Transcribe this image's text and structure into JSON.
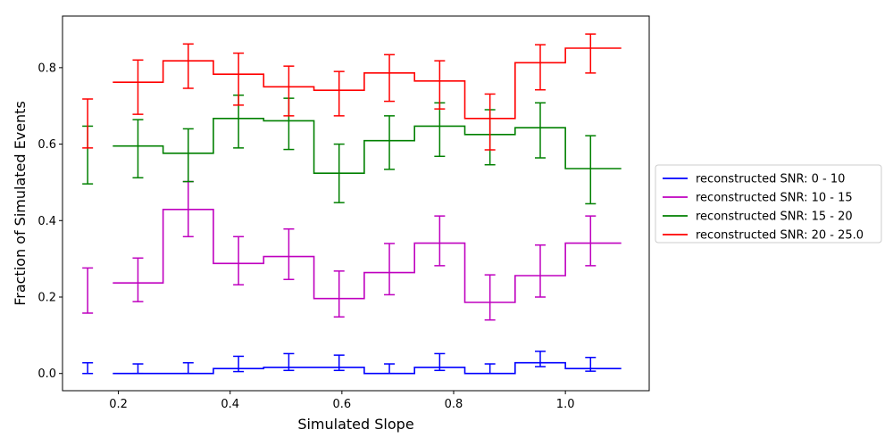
{
  "chart_data": {
    "type": "line",
    "title": "",
    "xlabel": "Simulated Slope",
    "ylabel": "Fraction of Simulated Events",
    "xlim": [
      0.1,
      1.15
    ],
    "ylim": [
      -0.045,
      0.935
    ],
    "xticks": [
      0.2,
      0.4,
      0.6,
      0.8,
      1.0
    ],
    "xtick_labels": [
      "0.2",
      "0.4",
      "0.6",
      "0.8",
      "1.0"
    ],
    "yticks": [
      0.0,
      0.2,
      0.4,
      0.6,
      0.8
    ],
    "ytick_labels": [
      "0.0",
      "0.2",
      "0.4",
      "0.6",
      "0.8"
    ],
    "grid": false,
    "legend_position": "outside-right",
    "bin_edges": [
      0.19,
      0.28,
      0.37,
      0.46,
      0.55,
      0.64,
      0.73,
      0.82,
      0.91,
      1.0,
      1.1
    ],
    "errorbar_x": [
      0.145,
      0.235,
      0.325,
      0.415,
      0.505,
      0.595,
      0.685,
      0.775,
      0.865,
      0.955,
      1.045
    ],
    "series": [
      {
        "name": "reconstructed SNR: 0 - 10",
        "color": "#0000ff",
        "values": [
          0.0,
          0.0,
          0.013,
          0.016,
          0.016,
          0.0,
          0.016,
          0.0,
          0.028,
          0.013
        ],
        "errorbars": [
          [
            0.0,
            0.028
          ],
          [
            0.0,
            0.025
          ],
          [
            0.0,
            0.028
          ],
          [
            0.005,
            0.045
          ],
          [
            0.008,
            0.052
          ],
          [
            0.008,
            0.048
          ],
          [
            0.0,
            0.025
          ],
          [
            0.008,
            0.052
          ],
          [
            0.0,
            0.025
          ],
          [
            0.018,
            0.058
          ],
          [
            0.006,
            0.042
          ]
        ]
      },
      {
        "name": "reconstructed SNR: 10 - 15",
        "color": "#bf00bf",
        "values": [
          0.237,
          0.429,
          0.288,
          0.306,
          0.196,
          0.264,
          0.341,
          0.186,
          0.256,
          0.341
        ],
        "errorbars": [
          [
            0.158,
            0.276
          ],
          [
            0.188,
            0.302
          ],
          [
            0.358,
            0.502
          ],
          [
            0.232,
            0.358
          ],
          [
            0.246,
            0.378
          ],
          [
            0.148,
            0.268
          ],
          [
            0.206,
            0.34
          ],
          [
            0.282,
            0.412
          ],
          [
            0.14,
            0.258
          ],
          [
            0.2,
            0.336
          ],
          [
            0.282,
            0.412
          ]
        ]
      },
      {
        "name": "reconstructed SNR: 15 - 20",
        "color": "#008000",
        "values": [
          0.595,
          0.576,
          0.667,
          0.661,
          0.524,
          0.609,
          0.647,
          0.625,
          0.643,
          0.536
        ],
        "errorbars": [
          [
            0.496,
            0.647
          ],
          [
            0.512,
            0.664
          ],
          [
            0.502,
            0.64
          ],
          [
            0.59,
            0.728
          ],
          [
            0.586,
            0.72
          ],
          [
            0.447,
            0.6
          ],
          [
            0.534,
            0.674
          ],
          [
            0.568,
            0.708
          ],
          [
            0.546,
            0.69
          ],
          [
            0.564,
            0.708
          ],
          [
            0.444,
            0.622
          ]
        ]
      },
      {
        "name": "reconstructed SNR: 20 - 25.0",
        "color": "#ff0000",
        "values": [
          0.762,
          0.818,
          0.783,
          0.75,
          0.741,
          0.786,
          0.765,
          0.667,
          0.813,
          0.851
        ],
        "errorbars": [
          [
            0.59,
            0.718
          ],
          [
            0.678,
            0.82
          ],
          [
            0.746,
            0.862
          ],
          [
            0.702,
            0.838
          ],
          [
            0.674,
            0.804
          ],
          [
            0.674,
            0.79
          ],
          [
            0.712,
            0.834
          ],
          [
            0.692,
            0.818
          ],
          [
            0.585,
            0.731
          ],
          [
            0.742,
            0.86
          ],
          [
            0.786,
            0.888
          ]
        ]
      }
    ]
  }
}
